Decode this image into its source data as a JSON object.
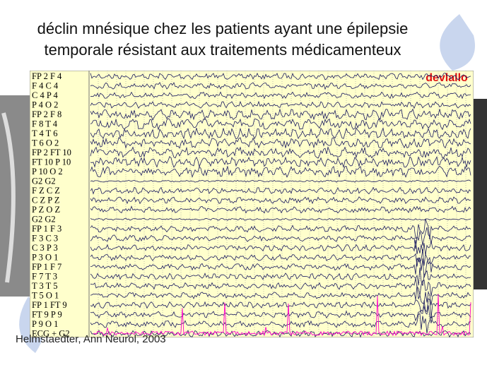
{
  "header": {
    "title_line_1": "déclin mnésique chez les patients ayant une épilepsie",
    "title_line_2": "temporale résistant aux traitements médicamenteux"
  },
  "eeg": {
    "watermark": "devlallo",
    "channels": [
      "FP 2 F 4",
      "F 4 C 4",
      "C 4 P 4",
      "P 4 O 2",
      "FP 2 F 8",
      "F 8 T 4",
      "T 4 T 6",
      "T 6 O 2",
      "FP 2 FT 10",
      "FT 10 P 10",
      "P 10 O 2",
      "G2 G2",
      "F Z C Z",
      "C Z P Z",
      "P Z O Z",
      "G2 G2",
      "FP 1 F 3",
      "F 3 C 3",
      "C 3 P 3",
      "P 3 O 1",
      "FP 1 F 7",
      "F 7 T 3",
      "T 3 T 5",
      "T 5 O 1",
      "FP 1 FT 9",
      "FT 9 P 9",
      "P 9 O 1",
      "ECG + G2"
    ]
  },
  "citation": "Helmstaedter, Ann Neurol, 2003"
}
